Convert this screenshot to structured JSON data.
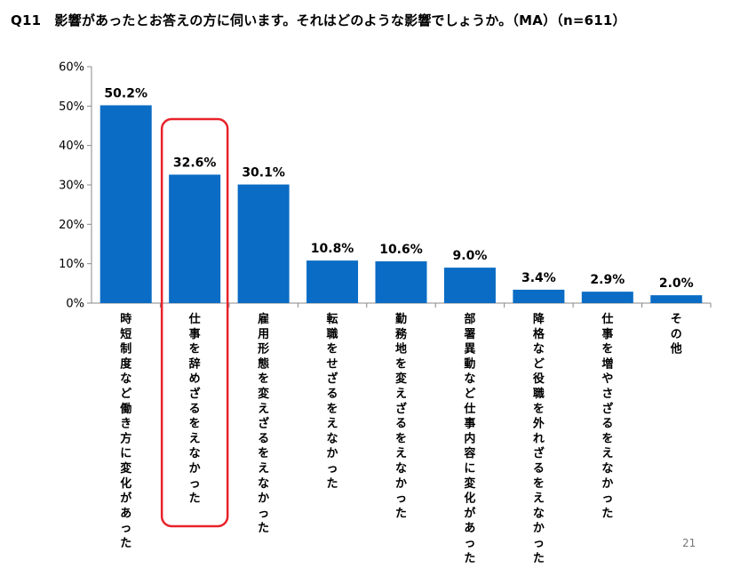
{
  "header": {
    "title": "Q11　影響があったとお答えの方に伺います。それはどのような影響でしょうか。（MA）（n=611）"
  },
  "footer": {
    "page_number": "21"
  },
  "colors": {
    "bar": "#0A6CC4",
    "highlight": "#E8232A",
    "axis": "#888888"
  },
  "chart_data": {
    "type": "bar",
    "categories": [
      "時短制度など働き方に変化があった",
      "仕事を辞めざるをえなかった",
      "雇用形態を変えざるをえなかった",
      "転職をせざるをえなかった",
      "勤務地を変えざるをえなかった",
      "部署異動など仕事内容に変化があった",
      "降格など役職を外れざるをえなかった",
      "仕事を増やさざるをえなかった",
      "その他"
    ],
    "values": [
      50.2,
      32.6,
      30.1,
      10.8,
      10.6,
      9.0,
      3.4,
      2.9,
      2.0
    ],
    "data_labels": [
      "50.2%",
      "32.6%",
      "30.1%",
      "10.8%",
      "10.6%",
      "9.0%",
      "3.4%",
      "2.9%",
      "2.0%"
    ],
    "ylim": [
      0,
      60
    ],
    "yticks": [
      "0%",
      "10%",
      "20%",
      "30%",
      "40%",
      "50%",
      "60%"
    ],
    "highlighted_category": "仕事を辞めざるをえなかった"
  }
}
